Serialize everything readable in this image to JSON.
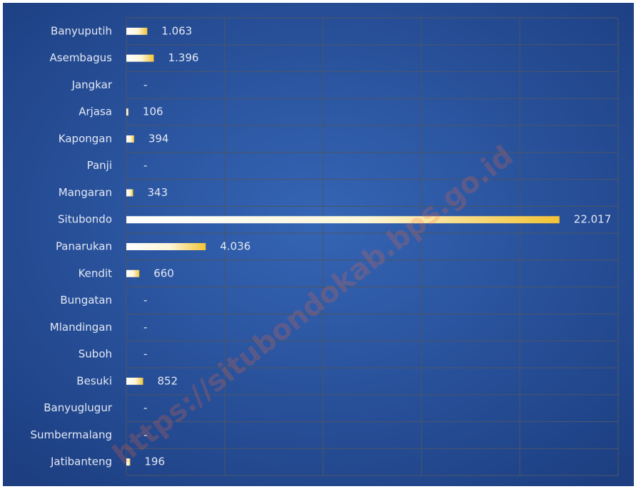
{
  "chart_data": {
    "type": "bar",
    "orientation": "horizontal",
    "categories": [
      "Banyuputih",
      "Asembagus",
      "Jangkar",
      "Arjasa",
      "Kapongan",
      "Panji",
      "Mangaran",
      "Situbondo",
      "Panarukan",
      "Kendit",
      "Bungatan",
      "Mlandingan",
      "Suboh",
      "Besuki",
      "Banyuglugur",
      "Sumbermalang",
      "Jatibanteng"
    ],
    "values": [
      1063,
      1396,
      null,
      106,
      394,
      null,
      343,
      22017,
      4036,
      660,
      null,
      null,
      null,
      852,
      null,
      null,
      196
    ],
    "value_labels": [
      "1.063",
      "1.396",
      "-",
      "106",
      "394",
      "-",
      "343",
      "22.017",
      "4.036",
      "660",
      "-",
      "-",
      "-",
      "852",
      "-",
      "-",
      "196"
    ],
    "xlim": [
      0,
      25000
    ],
    "xticks": [
      0,
      5000,
      10000,
      15000,
      20000,
      25000
    ],
    "grid": true,
    "color": "#f2c335",
    "watermark": "https://situbondokab.bps.go.id"
  }
}
